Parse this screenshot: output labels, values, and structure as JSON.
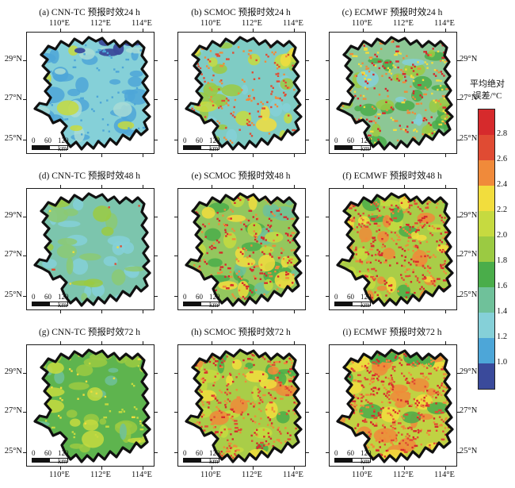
{
  "axes": {
    "lon": [
      "110°E",
      "112°E",
      "114°E"
    ],
    "lat": [
      "29°N",
      "27°N",
      "25°N"
    ]
  },
  "scalebar": {
    "t0": "0",
    "t60": "60",
    "t120": "120 km"
  },
  "colorbar": {
    "title_line1": "平均绝对",
    "title_line2": "误差/°C",
    "ticks": [
      "2.8",
      "2.6",
      "2.4",
      "2.2",
      "2.0",
      "1.8",
      "1.6",
      "1.4",
      "1.2",
      "1.0"
    ],
    "segment_colors": [
      "#d62a2c",
      "#e04b33",
      "#f08a3a",
      "#f2dd3d",
      "#c6da40",
      "#9bca42",
      "#4aad4a",
      "#6fc19a",
      "#85d0d8",
      "#4da6d8",
      "#3a4a9b"
    ]
  },
  "panels": [
    {
      "id": "a",
      "title": "(a) CNN-TC 预报时效24 h",
      "base": "#85d0d8",
      "blotches": [
        {
          "color": "#4da6d8",
          "count": 30
        },
        {
          "color": "#a9dcd6",
          "count": 12
        },
        {
          "color": "#c6da40",
          "count": 5
        }
      ],
      "speckles": {
        "colors": [
          "#4da6d8"
        ],
        "count": 60
      },
      "north": {
        "color": "#3a4a9b",
        "count": 7
      }
    },
    {
      "id": "b",
      "title": "(b) SCMOC 预报时效24 h",
      "base": "#7fccc4",
      "blotches": [
        {
          "color": "#85d0d8",
          "count": 10
        },
        {
          "color": "#9bca42",
          "count": 16
        },
        {
          "color": "#c6da40",
          "count": 8
        },
        {
          "color": "#f2dd3d",
          "count": 5
        }
      ],
      "speckles": {
        "colors": [
          "#e04b33",
          "#f08a3a"
        ],
        "count": 150
      },
      "north": null
    },
    {
      "id": "c",
      "title": "(c) ECMWF 预报时效24 h",
      "base": "#8cc795",
      "blotches": [
        {
          "color": "#4aad4a",
          "count": 18
        },
        {
          "color": "#9bca42",
          "count": 14
        },
        {
          "color": "#85d0d8",
          "count": 5
        }
      ],
      "speckles": {
        "colors": [
          "#d62a2c",
          "#f08a3a",
          "#f2dd3d"
        ],
        "count": 280
      },
      "north": null
    },
    {
      "id": "d",
      "title": "(d) CNN-TC 预报时效48 h",
      "base": "#7cc5ad",
      "blotches": [
        {
          "color": "#85d0d8",
          "count": 16
        },
        {
          "color": "#8cc973",
          "count": 12
        },
        {
          "color": "#9bca42",
          "count": 6
        }
      ],
      "speckles": {
        "colors": [
          "#f2dd3d",
          "#e04b33"
        ],
        "count": 14
      },
      "north": null
    },
    {
      "id": "e",
      "title": "(e) SCMOC 预报时效48 h",
      "base": "#93c75e",
      "blotches": [
        {
          "color": "#4aad4a",
          "count": 14
        },
        {
          "color": "#6fc19a",
          "count": 8
        },
        {
          "color": "#f2dd3d",
          "count": 10
        },
        {
          "color": "#c6da40",
          "count": 10
        }
      ],
      "speckles": {
        "colors": [
          "#d62a2c",
          "#f08a3a"
        ],
        "count": 240
      },
      "north": null
    },
    {
      "id": "f",
      "title": "(f) ECMWF 预报时效48 h",
      "base": "#a9cd48",
      "blotches": [
        {
          "color": "#c6da40",
          "count": 12
        },
        {
          "color": "#4aad4a",
          "count": 8
        },
        {
          "color": "#f08a3a",
          "count": 14
        },
        {
          "color": "#f2dd3d",
          "count": 8
        }
      ],
      "speckles": {
        "colors": [
          "#d62a2c",
          "#e04b33",
          "#f08a3a"
        ],
        "count": 400
      },
      "north": null
    },
    {
      "id": "g",
      "title": "(g) CNN-TC 预报时效72 h",
      "base": "#5eb44e",
      "blotches": [
        {
          "color": "#9bca42",
          "count": 20
        },
        {
          "color": "#6fc19a",
          "count": 8
        },
        {
          "color": "#c6da40",
          "count": 10
        }
      ],
      "speckles": {
        "colors": [
          "#f2dd3d",
          "#c6da40"
        ],
        "count": 50
      },
      "north": null
    },
    {
      "id": "h",
      "title": "(h) SCMOC 预报时效72 h",
      "base": "#a9cd48",
      "blotches": [
        {
          "color": "#c6da40",
          "count": 14
        },
        {
          "color": "#4aad4a",
          "count": 10
        },
        {
          "color": "#f08a3a",
          "count": 8
        },
        {
          "color": "#f2dd3d",
          "count": 8
        }
      ],
      "speckles": {
        "colors": [
          "#d62a2c",
          "#e04b33",
          "#f08a3a"
        ],
        "count": 340
      },
      "north": null
    },
    {
      "id": "i",
      "title": "(i) ECMWF 预报时效72 h",
      "base": "#c0d243",
      "blotches": [
        {
          "color": "#f08a3a",
          "count": 18
        },
        {
          "color": "#f2dd3d",
          "count": 10
        },
        {
          "color": "#4aad4a",
          "count": 6
        }
      ],
      "speckles": {
        "colors": [
          "#d62a2c",
          "#e04b33",
          "#f08a3a"
        ],
        "count": 460
      },
      "north": {
        "color": "#4aad4a",
        "count": 8
      }
    }
  ],
  "chart_data": {
    "type": "heatmap",
    "layout": "3x3 grid of province maps (columns = models, rows = forecast lead times)",
    "columns_models": [
      "CNN-TC",
      "SCMOC",
      "ECMWF"
    ],
    "rows_lead_times_h": [
      24,
      48,
      72
    ],
    "panels": [
      {
        "id": "(a)",
        "model": "CNN-TC",
        "lead_time_h": 24,
        "dominant_mae_c": "1.2–1.4",
        "notes": "lowest errors; navy (<1.0) patches in north"
      },
      {
        "id": "(b)",
        "model": "SCMOC",
        "lead_time_h": 24,
        "dominant_mae_c": "1.4–1.8",
        "notes": "scattered red hotspots >2.6"
      },
      {
        "id": "(c)",
        "model": "ECMWF",
        "lead_time_h": 24,
        "dominant_mae_c": "1.6–2.0",
        "notes": "many red hotspots >2.6"
      },
      {
        "id": "(d)",
        "model": "CNN-TC",
        "lead_time_h": 48,
        "dominant_mae_c": "1.4–1.8",
        "notes": "nearly uniform teal-green"
      },
      {
        "id": "(e)",
        "model": "SCMOC",
        "lead_time_h": 48,
        "dominant_mae_c": "1.8–2.2",
        "notes": "moderate red/orange hotspots"
      },
      {
        "id": "(f)",
        "model": "ECMWF",
        "lead_time_h": 48,
        "dominant_mae_c": "2.0–2.6",
        "notes": "dense red hotspots"
      },
      {
        "id": "(g)",
        "model": "CNN-TC",
        "lead_time_h": 72,
        "dominant_mae_c": "1.6–2.0",
        "notes": "mostly green"
      },
      {
        "id": "(h)",
        "model": "SCMOC",
        "lead_time_h": 72,
        "dominant_mae_c": "2.0–2.4",
        "notes": "dense red hotspots"
      },
      {
        "id": "(i)",
        "model": "ECMWF",
        "lead_time_h": 72,
        "dominant_mae_c": "2.2–2.8",
        "notes": "densest red hotspots; green in north"
      }
    ],
    "colorbar": {
      "label": "平均绝对误差/°C",
      "min": 1.0,
      "max": 2.8,
      "interval": 0.2,
      "tick_labels": [
        "1.0",
        "1.2",
        "1.4",
        "1.6",
        "1.8",
        "2.0",
        "2.2",
        "2.4",
        "2.6",
        "2.8"
      ],
      "colors_low_to_high": [
        "#3a4a9b",
        "#4da6d8",
        "#85d0d8",
        "#6fc19a",
        "#4aad4a",
        "#9bca42",
        "#c6da40",
        "#f2dd3d",
        "#f08a3a",
        "#e04b33",
        "#d62a2c"
      ]
    },
    "x_axis": {
      "tick_labels": [
        "110°E",
        "112°E",
        "114°E"
      ],
      "labels_shown": "top of row 1 and bottom of row 3"
    },
    "y_axis": {
      "tick_labels": [
        "29°N",
        "27°N",
        "25°N"
      ],
      "labels_shown": "left of column 1 and right of column 3"
    },
    "scale_bar": {
      "text": "0 60 120 km"
    }
  }
}
